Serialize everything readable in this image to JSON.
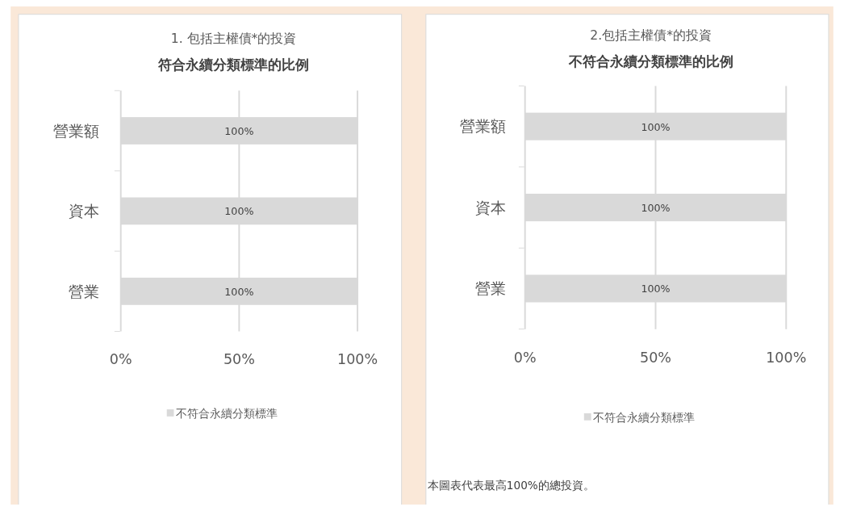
{
  "chart_data": [
    {
      "type": "bar",
      "orientation": "horizontal",
      "title": "1. 包括主權債*的投資",
      "subtitle": "符合永續分類標準的比例",
      "categories": [
        "營業額",
        "資本",
        "營業"
      ],
      "series": [
        {
          "name": "不符合永續分類標準",
          "color": "#d9d9d9",
          "values": [
            100,
            100,
            100
          ],
          "value_labels": [
            "100%",
            "100%",
            "100%"
          ]
        }
      ],
      "xlim": [
        0,
        100
      ],
      "xticks": [
        {
          "value": 0,
          "label": "0%"
        },
        {
          "value": 50,
          "label": "50%"
        },
        {
          "value": 100,
          "label": "100%"
        }
      ],
      "grid": "x",
      "legend": "bottom"
    },
    {
      "type": "bar",
      "orientation": "horizontal",
      "title": "2.包括主權債*的投資",
      "subtitle": "不符合永續分類標準的比例",
      "categories": [
        "營業額",
        "資本",
        "營業"
      ],
      "series": [
        {
          "name": "不符合永續分類標準",
          "color": "#d9d9d9",
          "values": [
            100,
            100,
            100
          ],
          "value_labels": [
            "100%",
            "100%",
            "100%"
          ]
        }
      ],
      "xlim": [
        0,
        100
      ],
      "xticks": [
        {
          "value": 0,
          "label": "0%"
        },
        {
          "value": 50,
          "label": "50%"
        },
        {
          "value": 100,
          "label": "100%"
        }
      ],
      "grid": "x",
      "legend": "bottom",
      "annotations": [
        "本圖表代表最高100%的總投資。"
      ]
    }
  ]
}
